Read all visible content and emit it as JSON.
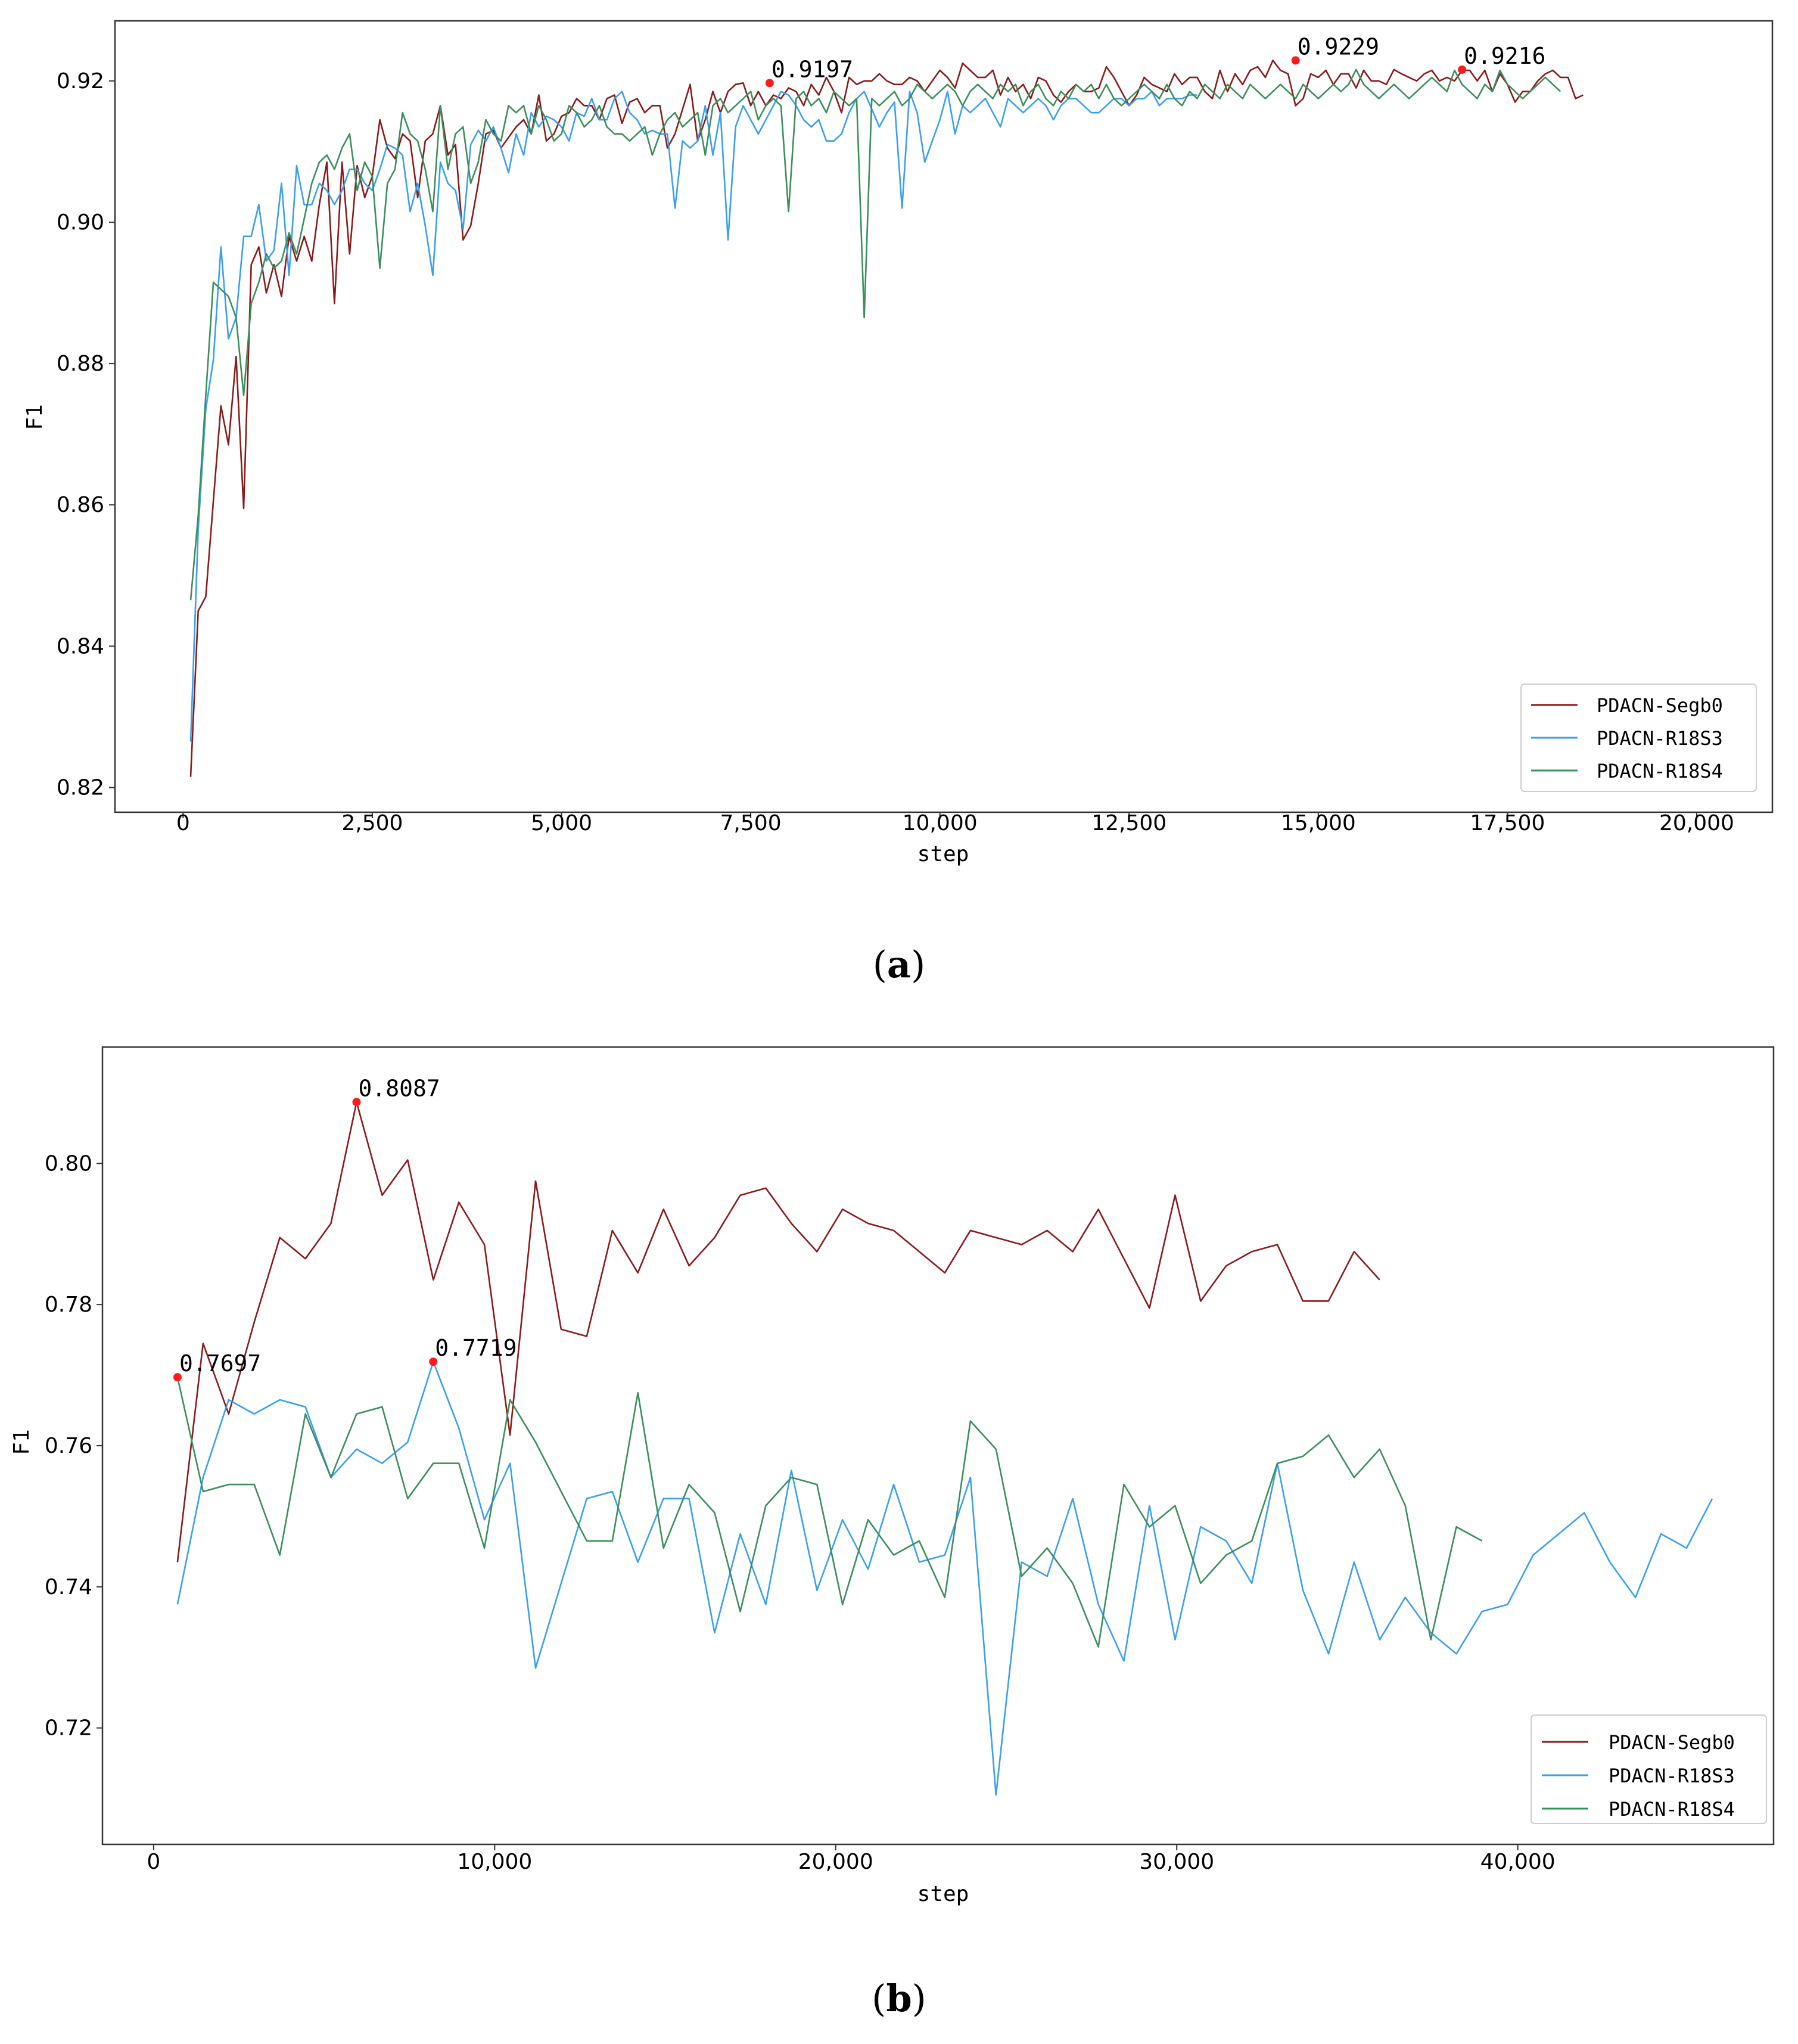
{
  "figure": {
    "captions": [
      "(a)",
      "(b)"
    ],
    "caption_letters": [
      "a",
      "b"
    ]
  },
  "chart_data": [
    {
      "id": "a",
      "type": "line",
      "caption": "(a)",
      "xlabel": "step",
      "ylabel": "F1",
      "xlim": [
        -900,
        21000
      ],
      "ylim": [
        0.8165,
        0.9285
      ],
      "xticks": [
        0,
        2500,
        5000,
        7500,
        10000,
        12500,
        15000,
        17500,
        20000
      ],
      "xtick_labels": [
        "0",
        "2,500",
        "5,000",
        "7,500",
        "10,000",
        "12,500",
        "15,000",
        "17,500",
        "20,000"
      ],
      "yticks": [
        0.82,
        0.84,
        0.86,
        0.88,
        0.9,
        0.92
      ],
      "ytick_labels": [
        "0.82",
        "0.84",
        "0.86",
        "0.88",
        "0.90",
        "0.92"
      ],
      "legend_position": "lower-right",
      "series": [
        {
          "name": "PDACN-Segb0",
          "color": "#8b1a1a",
          "x_start": 100,
          "x_step": 100,
          "values": [
            0.8215,
            0.845,
            0.847,
            0.8605,
            0.874,
            0.8685,
            0.881,
            0.8595,
            0.894,
            0.8965,
            0.89,
            0.894,
            0.8895,
            0.898,
            0.8945,
            0.898,
            0.8945,
            0.9025,
            0.9085,
            0.8885,
            0.9085,
            0.8955,
            0.908,
            0.9035,
            0.9065,
            0.9145,
            0.9105,
            0.909,
            0.9125,
            0.9115,
            0.9035,
            0.9115,
            0.9125,
            0.9165,
            0.9095,
            0.911,
            0.8975,
            0.8995,
            0.9055,
            0.9125,
            0.913,
            0.9105,
            0.912,
            0.9135,
            0.9145,
            0.9125,
            0.918,
            0.9115,
            0.9125,
            0.915,
            0.9155,
            0.9175,
            0.9165,
            0.9165,
            0.9145,
            0.9175,
            0.918,
            0.914,
            0.917,
            0.9175,
            0.9155,
            0.9165,
            0.9165,
            0.9105,
            0.9125,
            0.916,
            0.9195,
            0.9115,
            0.9145,
            0.9185,
            0.9155,
            0.9185,
            0.9195,
            0.9197,
            0.9165,
            0.9185,
            0.9165,
            0.918,
            0.9175,
            0.919,
            0.9185,
            0.9165,
            0.9195,
            0.918,
            0.9205,
            0.9185,
            0.9155,
            0.9205,
            0.9195,
            0.92,
            0.92,
            0.921,
            0.92,
            0.9195,
            0.9195,
            0.9205,
            0.92,
            0.9185,
            0.92,
            0.9215,
            0.9205,
            0.919,
            0.9225,
            0.9215,
            0.9205,
            0.9205,
            0.9215,
            0.918,
            0.9205,
            0.9185,
            0.9195,
            0.9175,
            0.9205,
            0.92,
            0.918,
            0.917,
            0.9185,
            0.9195,
            0.9185,
            0.9185,
            0.919,
            0.922,
            0.9205,
            0.9185,
            0.9165,
            0.918,
            0.9205,
            0.9195,
            0.919,
            0.9185,
            0.921,
            0.9195,
            0.9205,
            0.9205,
            0.9185,
            0.9175,
            0.9215,
            0.9185,
            0.921,
            0.9195,
            0.9215,
            0.922,
            0.9205,
            0.9229,
            0.9215,
            0.921,
            0.9165,
            0.9175,
            0.921,
            0.9205,
            0.9215,
            0.9195,
            0.921,
            0.921,
            0.919,
            0.9215,
            0.92,
            0.92,
            0.9195,
            0.9216,
            0.921,
            0.9205,
            0.92,
            0.921,
            0.9215,
            0.92,
            0.9205,
            0.92,
            0.9215,
            0.9215,
            0.92,
            0.9215,
            0.9185,
            0.921,
            0.9195,
            0.917,
            0.9185,
            0.9185,
            0.92,
            0.921,
            0.9215,
            0.9205,
            0.9205,
            0.9175,
            0.918
          ]
        },
        {
          "name": "PDACN-R18S3",
          "color": "#3a9ff0",
          "x_start": 100,
          "x_step": 100,
          "values": [
            0.8265,
            0.8565,
            0.8735,
            0.8805,
            0.8965,
            0.8835,
            0.8865,
            0.898,
            0.898,
            0.9025,
            0.8945,
            0.896,
            0.9055,
            0.8925,
            0.908,
            0.9025,
            0.9025,
            0.9055,
            0.9045,
            0.9025,
            0.9045,
            0.9075,
            0.9075,
            0.9055,
            0.9045,
            0.9075,
            0.911,
            0.9105,
            0.9095,
            0.9015,
            0.9055,
            0.8995,
            0.8925,
            0.9085,
            0.9055,
            0.9045,
            0.899,
            0.911,
            0.913,
            0.9115,
            0.9135,
            0.9105,
            0.907,
            0.9125,
            0.9095,
            0.9155,
            0.9135,
            0.915,
            0.9145,
            0.9135,
            0.9115,
            0.9155,
            0.915,
            0.9175,
            0.9145,
            0.9145,
            0.9175,
            0.9185,
            0.9155,
            0.9145,
            0.9125,
            0.913,
            0.9125,
            0.9125,
            0.902,
            0.9115,
            0.9105,
            0.9115,
            0.9165,
            0.9095,
            0.9155,
            0.8975,
            0.9135,
            0.9165,
            0.9145,
            0.9125,
            0.9145,
            0.9165,
            0.9185,
            0.918,
            0.9165,
            0.9145,
            0.9135,
            0.9145,
            0.9115,
            0.9115,
            0.9125,
            0.9155,
            0.9175,
            0.9185,
            0.916,
            0.9135,
            0.9155,
            0.917,
            0.902,
            0.9185,
            0.9155,
            0.9085,
            0.9115,
            0.9145,
            0.9185,
            0.9125,
            0.9165,
            0.9155,
            0.9165,
            0.9175,
            0.9155,
            0.9135,
            0.9175,
            0.9165,
            0.9155,
            0.9165,
            0.9175,
            0.9165,
            0.9145,
            0.9165,
            0.9175,
            0.9175,
            0.9165,
            0.9155,
            0.9155,
            0.9165,
            0.9175,
            0.9175,
            0.9165,
            0.9175,
            0.9175,
            0.9185,
            0.9165,
            0.9175,
            0.9175,
            0.9175,
            0.918,
            0.918
          ]
        },
        {
          "name": "PDACN-R18S4",
          "color": "#3a8f5a",
          "x_start": 100,
          "x_step": 100,
          "values": [
            0.8465,
            0.8585,
            0.8755,
            0.8915,
            0.8905,
            0.8895,
            0.8865,
            0.8755,
            0.8885,
            0.8915,
            0.8955,
            0.8935,
            0.8945,
            0.8985,
            0.8955,
            0.9005,
            0.9055,
            0.9085,
            0.9095,
            0.9075,
            0.9105,
            0.9125,
            0.9045,
            0.9085,
            0.9065,
            0.8935,
            0.9055,
            0.9075,
            0.9155,
            0.9125,
            0.9115,
            0.9075,
            0.9015,
            0.9165,
            0.9075,
            0.9125,
            0.9135,
            0.9055,
            0.9085,
            0.9145,
            0.9125,
            0.9115,
            0.9165,
            0.9155,
            0.9165,
            0.9125,
            0.9165,
            0.9145,
            0.9115,
            0.9125,
            0.9165,
            0.9155,
            0.9135,
            0.9145,
            0.9165,
            0.9135,
            0.9125,
            0.9125,
            0.9115,
            0.9125,
            0.9135,
            0.9095,
            0.9125,
            0.9145,
            0.9155,
            0.9135,
            0.9145,
            0.9155,
            0.9095,
            0.9165,
            0.9175,
            0.9155,
            0.9165,
            0.9175,
            0.9185,
            0.9145,
            0.9165,
            0.9175,
            0.9165,
            0.9015,
            0.9175,
            0.9185,
            0.9165,
            0.9175,
            0.9155,
            0.9185,
            0.9175,
            0.9165,
            0.9175,
            0.8865,
            0.9175,
            0.9165,
            0.9175,
            0.9185,
            0.9165,
            0.9175,
            0.9195,
            0.9185,
            0.9175,
            0.9185,
            0.9195,
            0.9185,
            0.9165,
            0.9185,
            0.9195,
            0.9185,
            0.9175,
            0.9195,
            0.9185,
            0.9195,
            0.9165,
            0.9185,
            0.9195,
            0.9175,
            0.9165,
            0.9185,
            0.9175,
            0.9195,
            0.9185,
            0.9195,
            0.9175,
            0.9195,
            0.9175,
            0.9165,
            0.9175,
            0.9185,
            0.9195,
            0.9185,
            0.9175,
            0.9195,
            0.9175,
            0.9165,
            0.9185,
            0.9175,
            0.9195,
            0.9185,
            0.9175,
            0.9195,
            0.9185,
            0.9175,
            0.9195,
            0.9185,
            0.9175,
            0.9185,
            0.9195,
            0.9185,
            0.9175,
            0.9195,
            0.9185,
            0.9175,
            0.9185,
            0.9195,
            0.9185,
            0.9195,
            0.9216,
            0.9195,
            0.9185,
            0.9175,
            0.9185,
            0.9195,
            0.9185,
            0.9175,
            0.9185,
            0.9195,
            0.9205,
            0.9195,
            0.9185,
            0.9215,
            0.9195,
            0.9185,
            0.9175,
            0.9195,
            0.9185,
            0.9215,
            0.9195,
            0.9185,
            0.9175,
            0.9185,
            0.9195,
            0.9205,
            0.9195,
            0.9185
          ]
        }
      ],
      "annotations": [
        {
          "x": 7750,
          "y": 0.9197,
          "label": "0.9197"
        },
        {
          "x": 14700,
          "y": 0.9229,
          "label": "0.9229"
        },
        {
          "x": 16900,
          "y": 0.9216,
          "label": "0.9216"
        }
      ]
    },
    {
      "id": "b",
      "type": "line",
      "caption": "(b)",
      "xlabel": "step",
      "ylabel": "F1",
      "xlim": [
        -1500,
        47500
      ],
      "ylim": [
        0.7035,
        0.8165
      ],
      "xticks": [
        0,
        10000,
        20000,
        30000,
        40000
      ],
      "xtick_labels": [
        "0",
        "10,000",
        "20,000",
        "30,000",
        "40,000"
      ],
      "yticks": [
        0.72,
        0.74,
        0.76,
        0.78,
        0.8
      ],
      "ytick_labels": [
        "0.72",
        "0.74",
        "0.76",
        "0.78",
        "0.80"
      ],
      "legend_position": "lower-right",
      "series": [
        {
          "name": "PDACN-Segb0",
          "color": "#8b1a1a",
          "x": [
            700,
            1450,
            2200,
            2950,
            3700,
            4450,
            5200,
            5950,
            6700,
            7450,
            8200,
            8950,
            9700,
            10450,
            11200,
            11950,
            12700,
            13450,
            14200,
            14950,
            15700,
            16450,
            17200,
            17950,
            18700,
            19450,
            20200,
            20950,
            21700,
            22450,
            23200,
            23950,
            24700,
            25450,
            26200,
            26950,
            27700,
            28450,
            29200,
            29950,
            30700,
            31450,
            32200,
            32950,
            33700,
            34450,
            35200,
            35950
          ],
          "values": [
            0.7435,
            0.7745,
            0.7645,
            0.7775,
            0.7895,
            0.7865,
            0.7915,
            0.8087,
            0.7955,
            0.8005,
            0.7835,
            0.7945,
            0.7885,
            0.7615,
            0.7975,
            0.7765,
            0.7755,
            0.7905,
            0.7845,
            0.7935,
            0.7855,
            0.7895,
            0.7955,
            0.7965,
            0.7915,
            0.7875,
            0.7935,
            0.7915,
            0.7905,
            0.7875,
            0.7845,
            0.7905,
            0.7895,
            0.7885,
            0.7905,
            0.7875,
            0.7935,
            0.7865,
            0.7795,
            0.7955,
            0.7805,
            0.7855,
            0.7875,
            0.7885,
            0.7805,
            0.7805,
            0.7875,
            0.7835
          ]
        },
        {
          "name": "PDACN-R18S3",
          "color": "#3a9ff0",
          "x": [
            700,
            1450,
            2200,
            2950,
            3700,
            4450,
            5200,
            5950,
            6700,
            7450,
            8200,
            8950,
            9700,
            10450,
            11200,
            11950,
            12700,
            13450,
            14200,
            14950,
            15700,
            16450,
            17200,
            17950,
            18700,
            19450,
            20200,
            20950,
            21700,
            22450,
            23200,
            23950,
            24700,
            25450,
            26200,
            26950,
            27700,
            28450,
            29200,
            29950,
            30700,
            31450,
            32200,
            32950,
            33700,
            34450,
            35200,
            35950,
            36700,
            37450,
            38200,
            38950,
            39700,
            40450,
            41200,
            41950,
            42700,
            43450,
            44200,
            44950,
            45700
          ],
          "values": [
            0.7375,
            0.7555,
            0.7665,
            0.7645,
            0.7665,
            0.7655,
            0.7555,
            0.7595,
            0.7575,
            0.7605,
            0.7719,
            0.7625,
            0.7495,
            0.7575,
            0.7285,
            0.7405,
            0.7525,
            0.7535,
            0.7435,
            0.7525,
            0.7525,
            0.7335,
            0.7475,
            0.7375,
            0.7565,
            0.7395,
            0.7495,
            0.7425,
            0.7545,
            0.7435,
            0.7445,
            0.7555,
            0.7105,
            0.7435,
            0.7415,
            0.7525,
            0.7375,
            0.7295,
            0.7515,
            0.7325,
            0.7485,
            0.7465,
            0.7405,
            0.7575,
            0.7395,
            0.7305,
            0.7435,
            0.7325,
            0.7385,
            0.7335,
            0.7305,
            0.7365,
            0.7375,
            0.7445,
            0.7475,
            0.7505,
            0.7435,
            0.7385,
            0.7475,
            0.7455,
            0.7525
          ]
        },
        {
          "name": "PDACN-R18S4",
          "color": "#3a8f5a",
          "x": [
            700,
            1450,
            2200,
            2950,
            3700,
            4450,
            5200,
            5950,
            6700,
            7450,
            8200,
            8950,
            9700,
            10450,
            11200,
            11950,
            12700,
            13450,
            14200,
            14950,
            15700,
            16450,
            17200,
            17950,
            18700,
            19450,
            20200,
            20950,
            21700,
            22450,
            23200,
            23950,
            24700,
            25450,
            26200,
            26950,
            27700,
            28450,
            29200,
            29950,
            30700,
            31450,
            32200,
            32950,
            33700,
            34450,
            35200,
            35950,
            36700,
            37450,
            38200,
            38950
          ],
          "values": [
            0.7697,
            0.7535,
            0.7545,
            0.7545,
            0.7445,
            0.7645,
            0.7555,
            0.7645,
            0.7655,
            0.7525,
            0.7575,
            0.7575,
            0.7455,
            0.7665,
            0.7605,
            0.7535,
            0.7465,
            0.7465,
            0.7675,
            0.7455,
            0.7545,
            0.7505,
            0.7365,
            0.7515,
            0.7555,
            0.7545,
            0.7375,
            0.7495,
            0.7445,
            0.7465,
            0.7385,
            0.7635,
            0.7595,
            0.7415,
            0.7455,
            0.7405,
            0.7315,
            0.7545,
            0.7485,
            0.7515,
            0.7405,
            0.7445,
            0.7465,
            0.7575,
            0.7585,
            0.7615,
            0.7555,
            0.7595,
            0.7515,
            0.7325,
            0.7485,
            0.7465
          ]
        }
      ],
      "annotations": [
        {
          "x": 700,
          "y": 0.7697,
          "label": "0.7697"
        },
        {
          "x": 5950,
          "y": 0.8087,
          "label": "0.8087"
        },
        {
          "x": 8200,
          "y": 0.7719,
          "label": "0.7719"
        }
      ]
    }
  ]
}
